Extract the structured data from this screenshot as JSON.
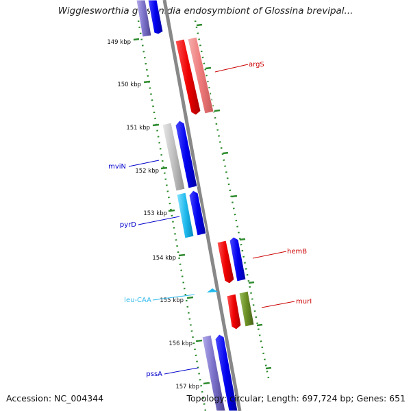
{
  "title": "Wigglesworthia glossinidia endosymbiont of Glossina brevipal...",
  "footer": {
    "accession": "Accession: NC_004344",
    "summary": "Topology: circular; Length: 697,724 bp; Genes: 651"
  },
  "scale_labels": [
    "149 kbp",
    "150 kbp",
    "151 kbp",
    "152 kbp",
    "153 kbp",
    "154 kbp",
    "155 kbp",
    "156 kbp",
    "157 kbp"
  ],
  "genes": [
    {
      "name": "argS",
      "color": "#cc0000"
    },
    {
      "name": "mviN",
      "color": "#0000cc"
    },
    {
      "name": "pyrD",
      "color": "#0000cc"
    },
    {
      "name": "hemB",
      "color": "#cc0000"
    },
    {
      "name": "leu-CAA",
      "color": "#33bbee"
    },
    {
      "name": "murI",
      "color": "#cc0000"
    },
    {
      "name": "pssA",
      "color": "#0000cc"
    }
  ],
  "colors": {
    "red": "#ee0000",
    "pink": "#f08080",
    "blue": "#0000ee",
    "gray": "#bbbbbb",
    "cyan": "#22bbee",
    "purple": "#7a70c8",
    "olive": "#6b8e23",
    "backbone": "#888888",
    "ticks": "#2e8b2e"
  }
}
